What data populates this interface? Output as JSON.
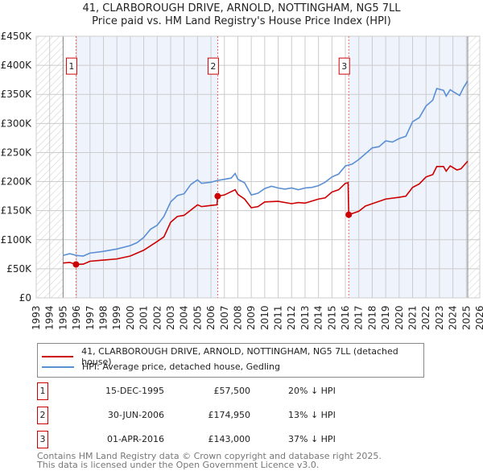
{
  "chart_data": {
    "type": "line",
    "title": "41, CLARBOROUGH DRIVE, ARNOLD, NOTTINGHAM, NG5 7LL",
    "subtitle": "Price paid vs. HM Land Registry's House Price Index (HPI)",
    "xlim": [
      1993,
      2026
    ],
    "ylim": [
      0,
      450000
    ],
    "x_ticks": [
      "1993",
      "1994",
      "1995",
      "1996",
      "1997",
      "1998",
      "1999",
      "2000",
      "2001",
      "2002",
      "2003",
      "2004",
      "2005",
      "2006",
      "2007",
      "2008",
      "2009",
      "2010",
      "2011",
      "2012",
      "2013",
      "2014",
      "2015",
      "2016",
      "2017",
      "2018",
      "2019",
      "2020",
      "2021",
      "2022",
      "2023",
      "2024",
      "2025",
      "2026"
    ],
    "y_ticks": [
      {
        "v": 0,
        "label": "£0"
      },
      {
        "v": 50000,
        "label": "£50K"
      },
      {
        "v": 100000,
        "label": "£100K"
      },
      {
        "v": 150000,
        "label": "£150K"
      },
      {
        "v": 200000,
        "label": "£200K"
      },
      {
        "v": 250000,
        "label": "£250K"
      },
      {
        "v": 300000,
        "label": "£300K"
      },
      {
        "v": 350000,
        "label": "£350K"
      },
      {
        "v": 400000,
        "label": "£400K"
      },
      {
        "v": 450000,
        "label": "£450K"
      }
    ],
    "grid": true,
    "series": [
      {
        "name": "41, CLARBOROUGH DRIVE, ARNOLD, NOTTINGHAM, NG5 7LL (detached house)",
        "color": "#cc0000",
        "x": [
          1995,
          1995.5,
          1995.96,
          1996.5,
          1997,
          1998,
          1999,
          2000,
          2001,
          2002,
          2002.5,
          2003,
          2003.5,
          2004,
          2005,
          2005.3,
          2006,
          2006.45,
          2006.5,
          2007,
          2007.8,
          2008,
          2008.5,
          2009,
          2009.5,
          2010,
          2011,
          2012,
          2012.5,
          2013,
          2014,
          2014.5,
          2015,
          2015.5,
          2016,
          2016.2,
          2016.25,
          2017,
          2017.5,
          2018,
          2019,
          2020,
          2020.5,
          2021,
          2021.5,
          2022,
          2022.5,
          2022.8,
          2023.3,
          2023.5,
          2023.8,
          2024.3,
          2024.6,
          2025.1
        ],
        "y": [
          60000,
          61000,
          57500,
          58000,
          63000,
          65000,
          67000,
          72000,
          82000,
          97000,
          105000,
          130000,
          140000,
          142000,
          160000,
          157000,
          159000,
          160000,
          174950,
          177000,
          186000,
          178000,
          170000,
          155000,
          157000,
          165000,
          166000,
          162000,
          164000,
          163000,
          170000,
          172000,
          182000,
          186000,
          197000,
          198000,
          143000,
          149000,
          158000,
          162000,
          170000,
          173000,
          175000,
          190000,
          196000,
          208000,
          212000,
          226000,
          226000,
          218000,
          227000,
          220000,
          222000,
          235000
        ]
      },
      {
        "name": "HPI: Average price, detached house, Gedling",
        "color": "#5b8fd4",
        "x": [
          1995,
          1995.5,
          1996,
          1996.5,
          1997,
          1998,
          1999,
          2000,
          2000.5,
          2001,
          2001.5,
          2002,
          2002.5,
          2003,
          2003.5,
          2004,
          2004.5,
          2005,
          2005.3,
          2006,
          2006.5,
          2007,
          2007.5,
          2007.8,
          2008,
          2008.5,
          2009,
          2009.5,
          2010,
          2010.5,
          2011,
          2011.5,
          2012,
          2012.5,
          2013,
          2013.5,
          2014,
          2014.5,
          2015,
          2015.5,
          2016,
          2016.5,
          2017,
          2017.5,
          2018,
          2018.5,
          2019,
          2019.5,
          2020,
          2020.5,
          2021,
          2021.5,
          2022,
          2022.5,
          2022.8,
          2023.3,
          2023.5,
          2023.8,
          2024,
          2024.5,
          2024.8,
          2025.1
        ],
        "y": [
          73000,
          76000,
          73000,
          72000,
          77000,
          80000,
          84000,
          90000,
          95000,
          104000,
          118000,
          125000,
          140000,
          165000,
          176000,
          179000,
          195000,
          203000,
          197000,
          199000,
          202000,
          204000,
          206000,
          214000,
          204000,
          198000,
          177000,
          180000,
          188000,
          192000,
          189000,
          187000,
          189000,
          186000,
          189000,
          190000,
          193000,
          199000,
          208000,
          213000,
          227000,
          230000,
          238000,
          248000,
          258000,
          260000,
          270000,
          268000,
          274000,
          278000,
          303000,
          310000,
          330000,
          340000,
          360000,
          357000,
          347000,
          358000,
          355000,
          348000,
          362000,
          373000
        ]
      }
    ],
    "sales": [
      {
        "label": "1",
        "x": 1995.96,
        "y": 57500,
        "date": "15-DEC-1995",
        "price": "£57,500",
        "hpi": "20% ↓ HPI"
      },
      {
        "label": "2",
        "x": 2006.5,
        "y": 174950,
        "date": "30-JUN-2006",
        "price": "£174,950",
        "hpi": "13% ↓ HPI"
      },
      {
        "label": "3",
        "x": 2016.25,
        "y": 143000,
        "date": "01-APR-2016",
        "price": "£143,000",
        "hpi": "37% ↓ HPI"
      }
    ],
    "data_range": [
      1995,
      2025.1
    ],
    "legend_placement": "below"
  },
  "footer": {
    "line1": "Contains HM Land Registry data © Crown copyright and database right 2025.",
    "line2": "This data is licensed under the Open Government Licence v3.0."
  }
}
